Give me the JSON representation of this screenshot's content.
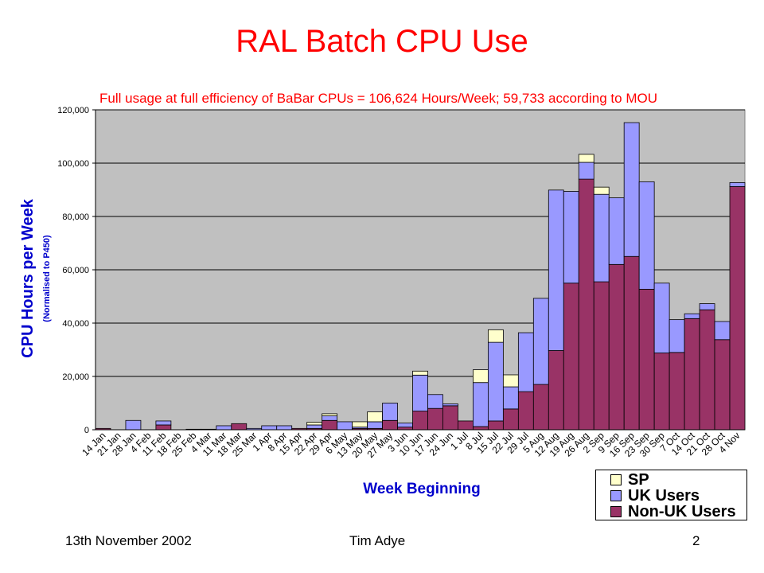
{
  "slide": {
    "title": "RAL Batch CPU Use",
    "subtitle": "Full usage at full efficiency of BaBar CPUs = 106,624 Hours/Week; 59,733 according to MOU",
    "footer_left": "13th November 2002",
    "footer_center": "Tim Adye",
    "footer_right": "2"
  },
  "colors": {
    "plot_bg": "#c0c0c0",
    "sp": "#ffffcc",
    "uk": "#9999ff",
    "nonuk": "#993366",
    "axis_title": "#0000cc",
    "title": "#ff0000"
  },
  "chart_data": {
    "type": "bar",
    "stacked": true,
    "xlabel": "Week Beginning",
    "ylabel": "CPU Hours per Week",
    "ylabel_sub": "(Normalised to P450)",
    "ylim": [
      0,
      120000
    ],
    "yticks": [
      0,
      20000,
      40000,
      60000,
      80000,
      100000,
      120000
    ],
    "ytick_labels": [
      "0",
      "20,000",
      "40,000",
      "60,000",
      "80,000",
      "100,000",
      "120,000"
    ],
    "grid": true,
    "legend_position": "bottom-right",
    "categories": [
      "14 Jan",
      "21 Jan",
      "28 Jan",
      "4 Feb",
      "11 Feb",
      "18 Feb",
      "25 Feb",
      "4 Mar",
      "11 Mar",
      "18 Mar",
      "25 Mar",
      "1 Apr",
      "8 Apr",
      "15 Apr",
      "22 Apr",
      "29 Apr",
      "6 May",
      "13 May",
      "20 May",
      "27 May",
      "3 Jun",
      "10 Jun",
      "17 Jun",
      "24 Jun",
      "1 Jul",
      "8 Jul",
      "15 Jul",
      "22 Jul",
      "29 Jul",
      "5 Aug",
      "12 Aug",
      "19 Aug",
      "26 Aug",
      "2 Sep",
      "9 Sep",
      "16 Sep",
      "23 Sep",
      "30 Sep",
      "7 Oct",
      "14 Oct",
      "21 Oct",
      "28 Oct",
      "4 Nov"
    ],
    "series": [
      {
        "name": "Non-UK Users",
        "values": [
          500,
          0,
          0,
          0,
          1800,
          0,
          0,
          0,
          0,
          2300,
          0,
          0,
          0,
          500,
          500,
          3500,
          0,
          500,
          500,
          3500,
          1000,
          7000,
          8000,
          9000,
          3300,
          1200,
          3300,
          7800,
          14300,
          17000,
          29700,
          55000,
          94000,
          55500,
          62000,
          65000,
          52700,
          28800,
          29000,
          41700,
          45000,
          33800,
          91200
        ]
      },
      {
        "name": "UK Users",
        "values": [
          0,
          0,
          3500,
          0,
          1500,
          0,
          200,
          200,
          1500,
          0,
          500,
          1500,
          1500,
          0,
          1300,
          1700,
          3000,
          500,
          2500,
          6500,
          1500,
          13500,
          5200,
          700,
          0,
          16500,
          29500,
          8300,
          22100,
          32300,
          60200,
          34400,
          6300,
          32800,
          25000,
          50200,
          40300,
          26200,
          12300,
          1800,
          2300,
          6800,
          1500
        ]
      },
      {
        "name": "SP",
        "values": [
          0,
          0,
          0,
          0,
          0,
          0,
          0,
          0,
          0,
          0,
          0,
          0,
          0,
          0,
          1000,
          800,
          0,
          2000,
          3700,
          0,
          0,
          1500,
          0,
          0,
          0,
          4800,
          4700,
          4500,
          0,
          0,
          0,
          0,
          3000,
          2700,
          0,
          0,
          0,
          0,
          0,
          0,
          0,
          0,
          0
        ]
      }
    ]
  }
}
